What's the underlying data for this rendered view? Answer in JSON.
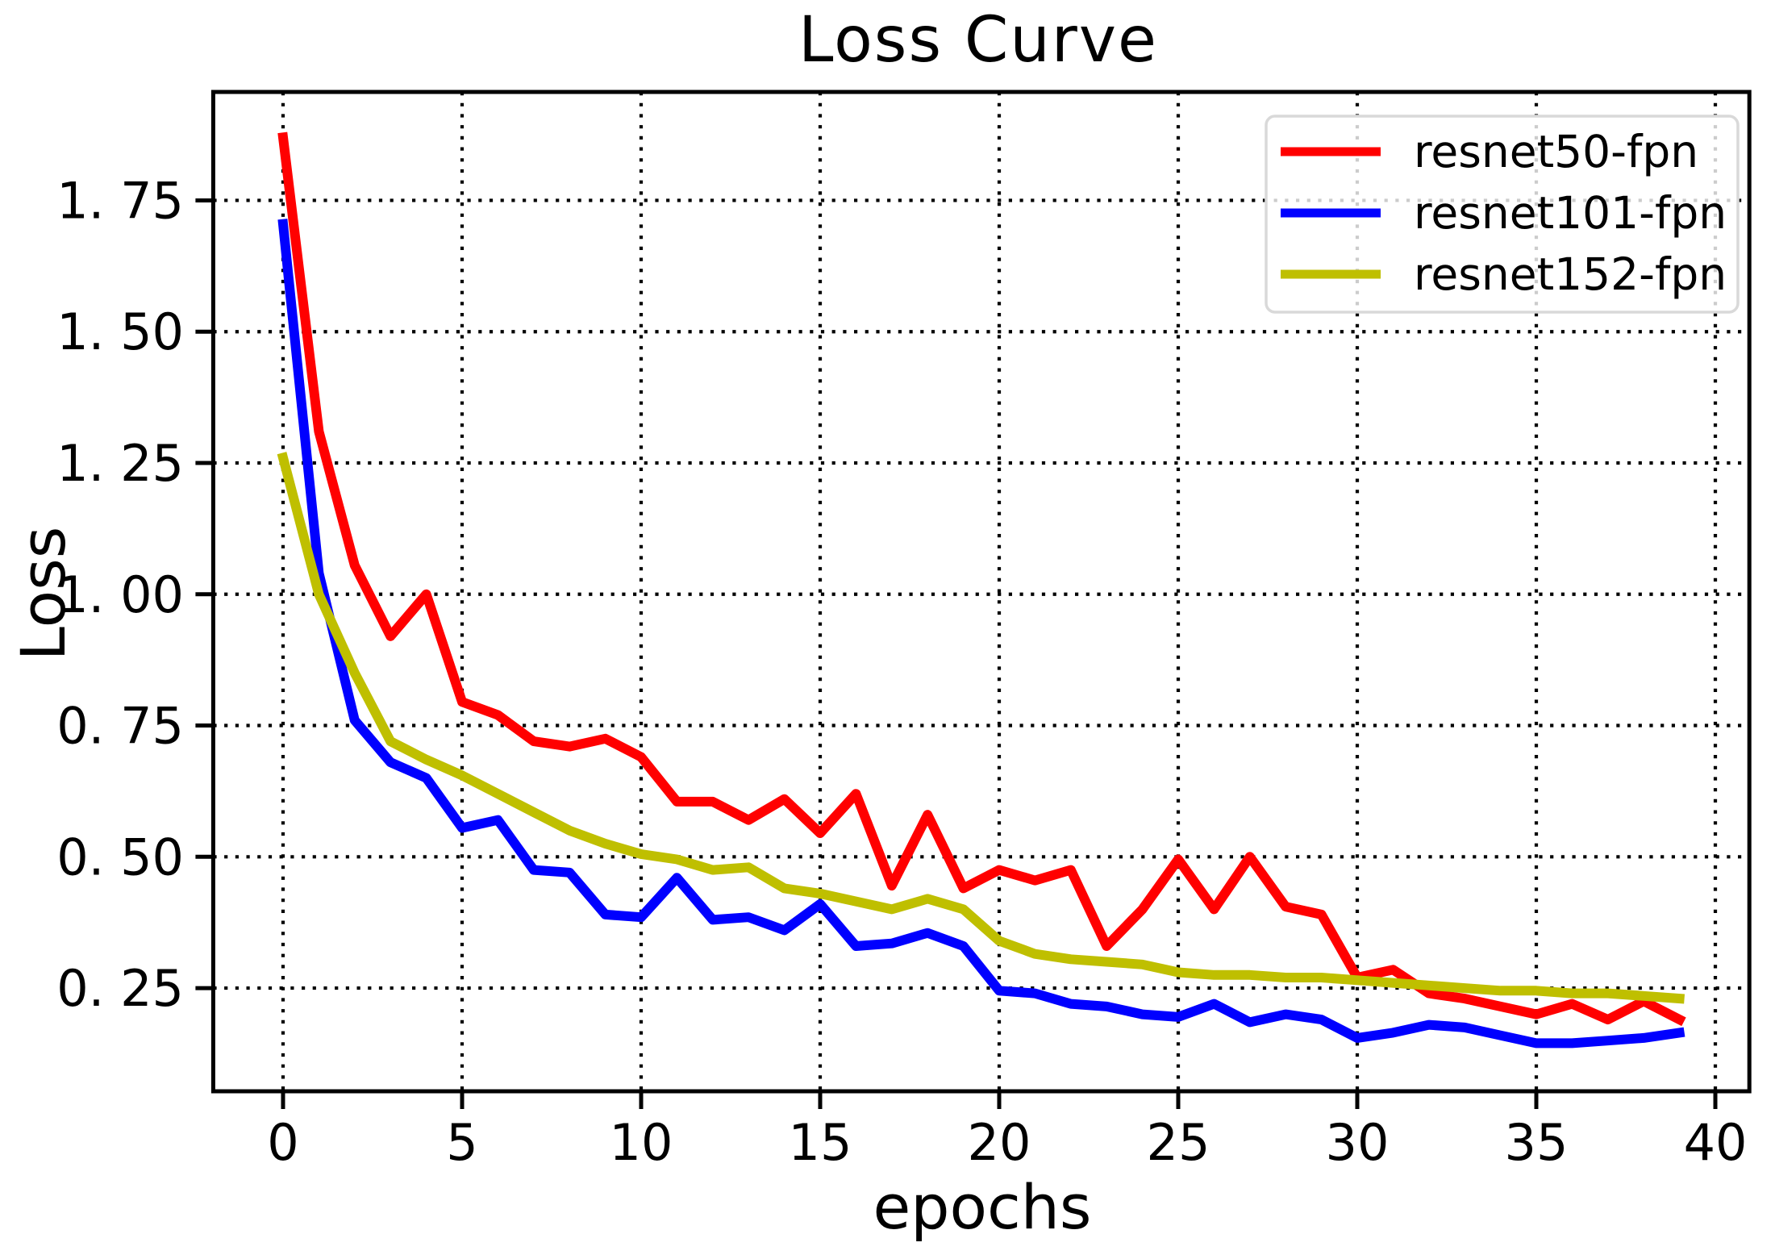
{
  "chart_data": {
    "type": "line",
    "title": "Loss Curve",
    "xlabel": "epochs",
    "ylabel": "Loss",
    "x": [
      0,
      1,
      2,
      3,
      4,
      5,
      6,
      7,
      8,
      9,
      10,
      11,
      12,
      13,
      14,
      15,
      16,
      17,
      18,
      19,
      20,
      21,
      22,
      23,
      24,
      25,
      26,
      27,
      28,
      29,
      30,
      31,
      32,
      33,
      34,
      35,
      36,
      37,
      38,
      39
    ],
    "series": [
      {
        "name": "resnet50-fpn",
        "color": "#ff0000",
        "values": [
          1.87,
          1.31,
          1.055,
          0.92,
          1.0,
          0.795,
          0.77,
          0.72,
          0.71,
          0.725,
          0.69,
          0.605,
          0.605,
          0.57,
          0.61,
          0.545,
          0.62,
          0.445,
          0.58,
          0.44,
          0.475,
          0.455,
          0.475,
          0.33,
          0.4,
          0.495,
          0.4,
          0.5,
          0.405,
          0.39,
          0.27,
          0.285,
          0.24,
          0.23,
          0.215,
          0.2,
          0.22,
          0.19,
          0.225,
          0.19
        ]
      },
      {
        "name": "resnet101-fpn",
        "color": "#0000ff",
        "values": [
          1.705,
          1.04,
          0.76,
          0.68,
          0.65,
          0.555,
          0.57,
          0.475,
          0.47,
          0.39,
          0.385,
          0.46,
          0.38,
          0.385,
          0.36,
          0.41,
          0.33,
          0.335,
          0.355,
          0.33,
          0.245,
          0.24,
          0.22,
          0.215,
          0.2,
          0.195,
          0.22,
          0.185,
          0.2,
          0.19,
          0.155,
          0.165,
          0.18,
          0.175,
          0.16,
          0.145,
          0.145,
          0.15,
          0.155,
          0.165
        ]
      },
      {
        "name": "resnet152-fpn",
        "color": "#bfbf00",
        "values": [
          1.26,
          1.0,
          0.85,
          0.72,
          0.685,
          0.655,
          0.62,
          0.585,
          0.55,
          0.525,
          0.505,
          0.495,
          0.475,
          0.48,
          0.44,
          0.43,
          0.415,
          0.4,
          0.42,
          0.4,
          0.34,
          0.315,
          0.305,
          0.3,
          0.295,
          0.28,
          0.275,
          0.275,
          0.27,
          0.27,
          0.265,
          0.26,
          0.255,
          0.25,
          0.245,
          0.245,
          0.24,
          0.24,
          0.235,
          0.23
        ]
      }
    ],
    "xlim": [
      -1.95,
      40.95
    ],
    "ylim": [
      0.0535,
      1.9565
    ],
    "xticks": [
      0,
      5,
      10,
      15,
      20,
      25,
      30,
      35,
      40
    ],
    "xtick_labels": [
      "0",
      "5",
      "10",
      "15",
      "20",
      "25",
      "30",
      "35",
      "40"
    ],
    "yticks": [
      0.25,
      0.5,
      0.75,
      1.0,
      1.25,
      1.5,
      1.75
    ],
    "ytick_labels": [
      "0. 25",
      "0. 50",
      "0. 75",
      "1. 00",
      "1. 25",
      "1. 50",
      "1. 75"
    ],
    "grid": "dotted black, on all ticks",
    "legend_position": "upper right",
    "legend_entries": [
      "resnet50-fpn",
      "resnet101-fpn",
      "resnet152-fpn"
    ],
    "line_color_red": "#ff0000",
    "line_color_blue": "#0000ff",
    "line_color_yellow": "#bfbf00",
    "background_color": "#ffffff",
    "spine_color": "#000000"
  }
}
